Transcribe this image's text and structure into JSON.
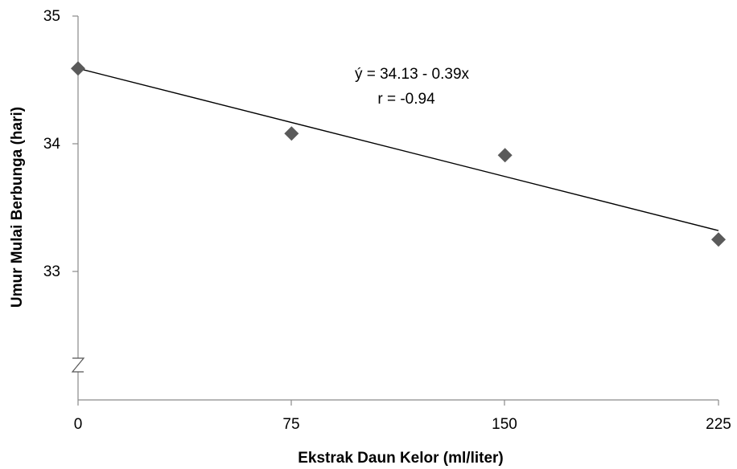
{
  "chart_data": {
    "type": "scatter",
    "xlabel": "Ekstrak Daun Kelor (ml/liter)",
    "ylabel": "Umur Mulai Berbunga (hari)",
    "x_ticks": [
      "0",
      "75",
      "150",
      "225"
    ],
    "y_ticks": [
      "33",
      "34",
      "35"
    ],
    "xlim": [
      0,
      225
    ],
    "y_axis_break": true,
    "series": [
      {
        "x": [
          0,
          75,
          150,
          225
        ],
        "y": [
          34.59,
          34.08,
          33.91,
          33.25
        ],
        "marker": "diamond",
        "color": "#5a5a5a"
      }
    ],
    "trendline": {
      "equation": "ý = 34.13 - 0.39x",
      "r_label": "r =  -0.94",
      "x_range": [
        0,
        225
      ],
      "y_range": [
        34.59,
        33.32
      ]
    },
    "grid": false
  }
}
